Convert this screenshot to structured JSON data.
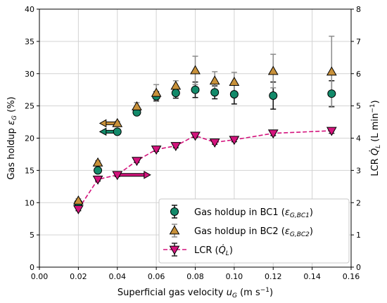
{
  "chart_data": {
    "type": "scatter",
    "title": "",
    "xlabel": "Superficial gas velocity u_G (m s⁻¹)",
    "ylabel_left": "Gas holdup ε_G (%)",
    "ylabel_right": "LCR Q̇_L (L min⁻¹)",
    "xlim": [
      0.0,
      0.16
    ],
    "ylim_left": [
      0,
      40
    ],
    "ylim_right": [
      0,
      8
    ],
    "x_ticks": [
      "0.00",
      "0.02",
      "0.04",
      "0.06",
      "0.08",
      "0.10",
      "0.12",
      "0.14",
      "0.16"
    ],
    "y_ticks_left": [
      "0",
      "5",
      "10",
      "15",
      "20",
      "25",
      "30",
      "35",
      "40"
    ],
    "y_ticks_right": [
      "0",
      "1",
      "2",
      "3",
      "4",
      "5",
      "6",
      "7",
      "8"
    ],
    "grid": true,
    "legend_position": "lower-right",
    "series": [
      {
        "name": "Gas holdup in BC1 (ε_G,BC1)",
        "marker": "circle",
        "color": "#138a6a",
        "axis": "left",
        "x": [
          0.02,
          0.03,
          0.04,
          0.05,
          0.06,
          0.07,
          0.08,
          0.09,
          0.1,
          0.12,
          0.15
        ],
        "y": [
          9.9,
          15.0,
          21.0,
          24.0,
          26.5,
          27.0,
          27.5,
          27.1,
          26.8,
          26.6,
          26.9
        ],
        "err": [
          0.3,
          0.3,
          0.3,
          0.4,
          0.7,
          0.8,
          1.2,
          1.0,
          1.5,
          2.1,
          2.0
        ]
      },
      {
        "name": "Gas holdup in BC2 (ε_G,BC2)",
        "marker": "triangle-up",
        "color": "#c8913a",
        "axis": "left",
        "x": [
          0.02,
          0.03,
          0.04,
          0.05,
          0.06,
          0.07,
          0.08,
          0.09,
          0.1,
          0.12,
          0.15
        ],
        "y": [
          10.3,
          16.2,
          22.3,
          24.9,
          27.0,
          28.1,
          30.5,
          28.9,
          28.7,
          30.4,
          30.3
        ],
        "err": [
          0.3,
          0.3,
          0.3,
          0.6,
          1.3,
          0.8,
          2.2,
          1.4,
          1.5,
          2.6,
          5.5
        ]
      },
      {
        "name": "LCR (Q̇_L)",
        "marker": "triangle-down",
        "color": "#d4147d",
        "line": "dashed",
        "axis": "right",
        "x": [
          0.02,
          0.03,
          0.04,
          0.05,
          0.06,
          0.07,
          0.08,
          0.09,
          0.1,
          0.12,
          0.15
        ],
        "y": [
          1.8,
          2.72,
          2.86,
          3.3,
          3.65,
          3.76,
          4.08,
          3.87,
          3.95,
          4.15,
          4.23
        ],
        "err": [
          0.05,
          0.05,
          0.05,
          0.05,
          0.06,
          0.06,
          0.06,
          0.06,
          0.06,
          0.07,
          0.08
        ]
      }
    ],
    "arrows": [
      {
        "x_from": 0.04,
        "x_to": 0.031,
        "y_left": 22.3,
        "color": "#c8913a",
        "points_to": "left axis"
      },
      {
        "x_from": 0.04,
        "x_to": 0.031,
        "y_left": 21.0,
        "color": "#138a6a",
        "points_to": "left axis"
      },
      {
        "x_from": 0.04,
        "x_to": 0.057,
        "y_right": 2.86,
        "color": "#d4147d",
        "points_to": "right axis"
      }
    ]
  }
}
